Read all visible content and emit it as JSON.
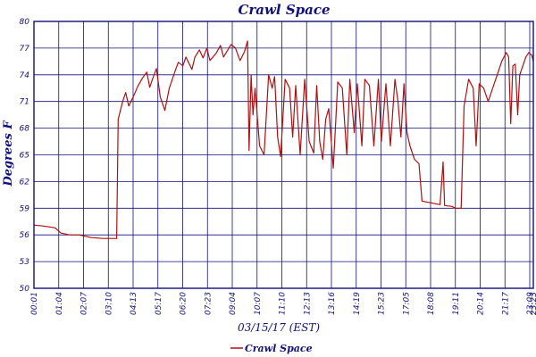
{
  "chart_data": {
    "type": "line",
    "title": "Crawl Space",
    "xlabel": "03/15/17 (EST)",
    "ylabel": "Degrees F",
    "ylim": [
      50,
      80
    ],
    "y_ticks": [
      "50",
      "53",
      "56",
      "59",
      "62",
      "65",
      "68",
      "71",
      "74",
      "77",
      "80"
    ],
    "x_ticks": [
      "00:01",
      "01:04",
      "02:07",
      "03:10",
      "04:13",
      "05:17",
      "06:20",
      "07:23",
      "09:04",
      "10:07",
      "11:10",
      "12:13",
      "13:16",
      "14:19",
      "15:23",
      "17:05",
      "18:08",
      "19:11",
      "20:14",
      "21:17",
      "23:09",
      "23:23"
    ],
    "grid": true,
    "legend_position": "bottom-left",
    "colors": {
      "series": "#b01010",
      "axis": "#10107a",
      "grid": "#10107a"
    },
    "series": [
      {
        "name": "Crawl Space",
        "values": [
          [
            0,
            57.1
          ],
          [
            0.3,
            57.0
          ],
          [
            0.7,
            56.8
          ],
          [
            0.9,
            56.2
          ],
          [
            1.2,
            56.0
          ],
          [
            1.5,
            56.0
          ],
          [
            1.9,
            55.7
          ],
          [
            2.3,
            55.6
          ],
          [
            2.6,
            55.6
          ],
          [
            2.75,
            55.6
          ],
          [
            2.8,
            69.0
          ],
          [
            2.95,
            71.0
          ],
          [
            3.05,
            72.0
          ],
          [
            3.15,
            70.5
          ],
          [
            3.3,
            71.5
          ],
          [
            3.45,
            72.7
          ],
          [
            3.6,
            73.6
          ],
          [
            3.75,
            74.3
          ],
          [
            3.85,
            72.6
          ],
          [
            3.95,
            73.6
          ],
          [
            4.07,
            74.7
          ],
          [
            4.2,
            71.5
          ],
          [
            4.35,
            70.0
          ],
          [
            4.5,
            72.5
          ],
          [
            4.7,
            74.5
          ],
          [
            4.8,
            75.4
          ],
          [
            4.95,
            75.0
          ],
          [
            5.05,
            76.0
          ],
          [
            5.25,
            74.6
          ],
          [
            5.35,
            76.0
          ],
          [
            5.5,
            76.8
          ],
          [
            5.62,
            75.9
          ],
          [
            5.75,
            77.0
          ],
          [
            5.85,
            75.6
          ],
          [
            6.05,
            76.4
          ],
          [
            6.2,
            77.3
          ],
          [
            6.3,
            76.0
          ],
          [
            6.55,
            77.4
          ],
          [
            6.7,
            77.0
          ],
          [
            6.85,
            75.6
          ],
          [
            7.0,
            76.6
          ],
          [
            7.1,
            77.8
          ],
          [
            7.15,
            65.5
          ],
          [
            7.22,
            74.0
          ],
          [
            7.28,
            69.5
          ],
          [
            7.35,
            72.5
          ],
          [
            7.5,
            66.0
          ],
          [
            7.65,
            65.0
          ],
          [
            7.8,
            74.0
          ],
          [
            7.92,
            72.5
          ],
          [
            8.0,
            73.8
          ],
          [
            8.1,
            67.0
          ],
          [
            8.2,
            64.8
          ],
          [
            8.35,
            73.5
          ],
          [
            8.5,
            72.5
          ],
          [
            8.6,
            67.0
          ],
          [
            8.7,
            72.8
          ],
          [
            8.85,
            65.0
          ],
          [
            9.0,
            73.5
          ],
          [
            9.15,
            66.5
          ],
          [
            9.3,
            65.2
          ],
          [
            9.4,
            72.8
          ],
          [
            9.5,
            66.5
          ],
          [
            9.6,
            64.5
          ],
          [
            9.7,
            69.0
          ],
          [
            9.8,
            70.2
          ],
          [
            9.95,
            63.5
          ],
          [
            10.1,
            73.2
          ],
          [
            10.25,
            72.5
          ],
          [
            10.4,
            65.0
          ],
          [
            10.5,
            73.5
          ],
          [
            10.65,
            67.5
          ],
          [
            10.75,
            73.0
          ],
          [
            10.9,
            66.0
          ],
          [
            11.0,
            73.5
          ],
          [
            11.15,
            72.8
          ],
          [
            11.3,
            66.0
          ],
          [
            11.45,
            73.5
          ],
          [
            11.55,
            66.5
          ],
          [
            11.7,
            73.0
          ],
          [
            11.85,
            66.0
          ],
          [
            12.0,
            73.5
          ],
          [
            12.1,
            71.0
          ],
          [
            12.2,
            67.0
          ],
          [
            12.3,
            73.0
          ],
          [
            12.4,
            67.5
          ],
          [
            12.5,
            66.0
          ],
          [
            12.65,
            64.5
          ],
          [
            12.8,
            64.0
          ],
          [
            12.9,
            59.8
          ],
          [
            13.2,
            59.6
          ],
          [
            13.5,
            59.4
          ],
          [
            13.6,
            64.2
          ],
          [
            13.65,
            59.3
          ],
          [
            13.9,
            59.2
          ],
          [
            14.0,
            59.0
          ],
          [
            14.2,
            59.0
          ],
          [
            14.3,
            70.5
          ],
          [
            14.45,
            73.5
          ],
          [
            14.6,
            72.5
          ],
          [
            14.7,
            66.0
          ],
          [
            14.8,
            73.0
          ],
          [
            14.95,
            72.5
          ],
          [
            15.1,
            71.0
          ],
          [
            15.25,
            72.5
          ],
          [
            15.4,
            74.0
          ],
          [
            15.55,
            75.5
          ],
          [
            15.7,
            76.5
          ],
          [
            15.78,
            76.0
          ],
          [
            15.85,
            68.5
          ],
          [
            15.92,
            75.0
          ],
          [
            16.0,
            75.2
          ],
          [
            16.08,
            69.5
          ],
          [
            16.15,
            74.0
          ],
          [
            16.25,
            75.0
          ],
          [
            16.35,
            76.0
          ],
          [
            16.45,
            76.5
          ],
          [
            16.55,
            76.2
          ],
          [
            16.6,
            75.5
          ]
        ]
      }
    ]
  }
}
